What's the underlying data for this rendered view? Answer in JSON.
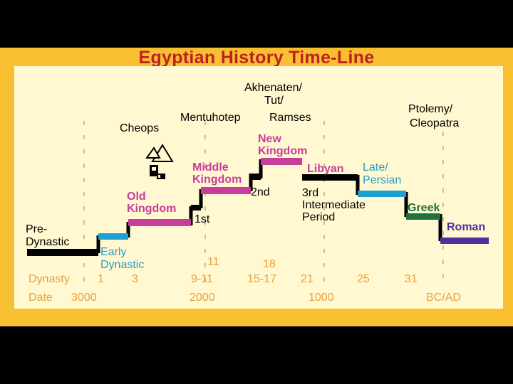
{
  "title": "Egyptian History Time-Line",
  "colors": {
    "frame": "#f8c030",
    "panel": "#fff8d0",
    "title": "#c02020",
    "black": "#000000",
    "blue": "#20a0d0",
    "magenta": "#c83c9c",
    "green": "#207040",
    "purple": "#5030a0",
    "orange": "#e8a040"
  },
  "rows": {
    "dynasty_label": "Dynasty",
    "date_label": "Date",
    "dynasties": [
      "1",
      "3",
      "9-11",
      "15-17",
      "21",
      "25",
      "31"
    ],
    "dynasties_upper": [
      "11",
      "18"
    ],
    "dates": [
      "3000",
      "2000",
      "1000",
      "BC/AD"
    ]
  },
  "periods": [
    {
      "label": "Pre-\nDynastic",
      "color": "#000000"
    },
    {
      "label": "Early\nDynastic",
      "color": "#20a0d0"
    },
    {
      "label": "Old\nKingdom",
      "color": "#c83c9c"
    },
    {
      "label": "1st",
      "color": "#000000"
    },
    {
      "label": "Middle\nKingdom",
      "color": "#c83c9c"
    },
    {
      "label": "2nd",
      "color": "#000000"
    },
    {
      "label": "New\nKingdom",
      "color": "#c83c9c"
    },
    {
      "label": "Libyan",
      "color": "#c83c9c"
    },
    {
      "label": "3rd\nIntermediate\nPeriod",
      "color": "#000000"
    },
    {
      "label": "Late/\nPersian",
      "color": "#20a0d0"
    },
    {
      "label": "Greek",
      "color": "#207040"
    },
    {
      "label": "Roman",
      "color": "#5030a0"
    }
  ],
  "rulers": {
    "cheops": "Cheops",
    "mentuhotep": "Mentuhotep",
    "akhenaten": "Akhenaten/\nTut/",
    "ramses": "Ramses",
    "ptolemy": "Ptolemy/\nCleopatra"
  },
  "icons": {
    "pyramid": "pyramid-icon",
    "sphinx": "sphinx-icon"
  }
}
